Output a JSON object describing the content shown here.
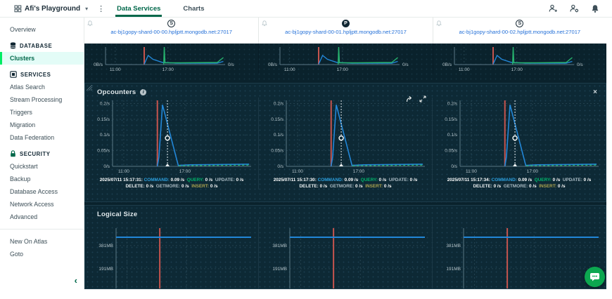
{
  "topbar": {
    "org_name": "Afi's Playground",
    "tabs": [
      {
        "label": "Data Services",
        "active": true
      },
      {
        "label": "Charts",
        "active": false
      }
    ]
  },
  "icons": {
    "caret_down": "▾",
    "kebab": "⋮",
    "close": "×",
    "collapse": "‹",
    "info": "i",
    "org": "org-grid",
    "invite_user": "person-plus",
    "user_settings": "person-gear",
    "notifications": "bell",
    "alerts": "bell",
    "share": "share-arrow",
    "expand": "expand-arrows",
    "drag": "drag-handle",
    "chat": "chat-bubble"
  },
  "sidebar": {
    "overview": "Overview",
    "database_header": "DATABASE",
    "clusters": "Clusters",
    "services_header": "SERVICES",
    "services_items": [
      "Atlas Search",
      "Stream Processing",
      "Triggers",
      "Migration",
      "Data Federation"
    ],
    "security_header": "SECURITY",
    "security_items": [
      "Quickstart",
      "Backup",
      "Database Access",
      "Network Access",
      "Advanced"
    ],
    "footer_items": [
      "New On Atlas",
      "Goto"
    ]
  },
  "shards": [
    {
      "badge": "S",
      "host": "ac-bj1gopy-shard-00-00.hpljptt.mongodb.net:27017"
    },
    {
      "badge": "P",
      "host": "ac-bj1gopy-shard-00-01.hpljptt.mongodb.net:27017"
    },
    {
      "badge": "S",
      "host": "ac-bj1gopy-shard-00-02.hpljptt.mongodb.net:27017"
    }
  ],
  "opcounters": {
    "title": "Opcounters",
    "charts": [
      {
        "timestamp": "2025/07/11 15:17:31:",
        "metrics": [
          {
            "label": "COMMAND:",
            "value": "0.09 /s",
            "color": "#2b9edd"
          },
          {
            "label": "QUERY:",
            "value": "0 /s",
            "color": "#00b36a"
          },
          {
            "label": "UPDATE:",
            "value": "0 /s",
            "color": "#a9bac3"
          },
          {
            "label": "DELETE:",
            "value": "0 /s",
            "color": "#e9eef0"
          },
          {
            "label": "GETMORE:",
            "value": "0 /s",
            "color": "#a9bac3"
          },
          {
            "label": "INSERT:",
            "value": "0 /s",
            "color": "#aaa24e"
          }
        ]
      },
      {
        "timestamp": "2025/07/11 15:17:30:",
        "metrics": [
          {
            "label": "COMMAND:",
            "value": "0.09 /s",
            "color": "#2b9edd"
          },
          {
            "label": "QUERY:",
            "value": "0 /s",
            "color": "#00b36a"
          },
          {
            "label": "UPDATE:",
            "value": "0 /s",
            "color": "#a9bac3"
          },
          {
            "label": "DELETE:",
            "value": "0 /s",
            "color": "#e9eef0"
          },
          {
            "label": "GETMORE:",
            "value": "0 /s",
            "color": "#a9bac3"
          },
          {
            "label": "INSERT:",
            "value": "0 /s",
            "color": "#aaa24e"
          }
        ]
      },
      {
        "timestamp": "2025/07/11 15:17:34:",
        "metrics": [
          {
            "label": "COMMAND:",
            "value": "0.09 /s",
            "color": "#2b9edd"
          },
          {
            "label": "QUERY:",
            "value": "0 /s",
            "color": "#00b36a"
          },
          {
            "label": "UPDATE:",
            "value": "0 /s",
            "color": "#a9bac3"
          },
          {
            "label": "DELETE:",
            "value": "0 /s",
            "color": "#e9eef0"
          },
          {
            "label": "GETMORE:",
            "value": "0 /s",
            "color": "#a9bac3"
          },
          {
            "label": "INSERT:",
            "value": "0 /s",
            "color": "#aaa24e"
          }
        ]
      }
    ]
  },
  "logical_size": {
    "title": "Logical Size"
  },
  "colors": {
    "accent_green": "#00684a",
    "active_indicator": "#00ed64",
    "link_blue": "#2470d8",
    "event_line": "#c5544e",
    "series_blue": "#2287d8",
    "series_green": "#27b56f",
    "panel_bg": "#0d2935",
    "fab_green": "#0ca750"
  },
  "chart_data": {
    "shard_mini": {
      "type": "line",
      "note": "mini throughput chart rendered once per shard column",
      "xlim": [
        9.9,
        23.5
      ],
      "ylim": [
        0,
        1
      ],
      "xticks": [
        {
          "t": 11,
          "label": "11:00"
        },
        {
          "t": 17,
          "label": "17:00"
        }
      ],
      "side_labels": [
        {
          "side": "left",
          "label": "0B/s"
        },
        {
          "side": "right",
          "label": "0/s"
        }
      ],
      "red_line": 14.3,
      "axes": true,
      "series": [
        {
          "name": "shard-traffic-blue",
          "color": "#2287d8",
          "width": 1.4,
          "points": [
            [
              14.3,
              0.02
            ],
            [
              14.75,
              0.52
            ],
            [
              15.3,
              0.3
            ],
            [
              16.4,
              0.12
            ],
            [
              18,
              0.08
            ],
            [
              22.6,
              0.08
            ],
            [
              23.3,
              0.18
            ]
          ]
        },
        {
          "name": "shard-traffic-green",
          "color": "#27b56f",
          "width": 1.4,
          "points": [
            [
              16.52,
              0
            ],
            [
              16.58,
              1.6
            ],
            [
              16.66,
              0.1
            ],
            [
              18.5,
              0.1
            ],
            [
              22.6,
              0.12
            ],
            [
              23.3,
              0.4
            ]
          ]
        }
      ]
    },
    "opcounters": {
      "type": "line",
      "note": "opcounters chart rendered once per shard; command spikes to ~0.2/s",
      "xlim": [
        9.9,
        23.5
      ],
      "ylim": [
        0,
        0.21
      ],
      "yticks": [
        {
          "v": 0.2,
          "label": "0.2/s"
        },
        {
          "v": 0.15,
          "label": "0.15/s"
        },
        {
          "v": 0.1,
          "label": "0.1/s"
        },
        {
          "v": 0.05,
          "label": "0.05/s"
        },
        {
          "v": 0,
          "label": "0/s"
        }
      ],
      "xticks": [
        {
          "t": 11,
          "label": "11:00"
        },
        {
          "t": 17,
          "label": "17:00"
        }
      ],
      "red_line": 14.3,
      "hover": {
        "t": 15.29,
        "marker_v": 0.09
      },
      "axes": true,
      "series": [
        {
          "name": "command",
          "color": "#2287d8",
          "width": 1.6,
          "points": [
            [
              14.3,
              0
            ],
            [
              14.45,
              0.03
            ],
            [
              14.8,
              0.196
            ],
            [
              16.35,
              0.003
            ],
            [
              17.5,
              0.005
            ],
            [
              23.3,
              0.007
            ]
          ]
        },
        {
          "name": "query",
          "color": "#27b56f",
          "width": 1.3,
          "dash": "3,3",
          "points": [
            [
              16.4,
              0.002
            ],
            [
              23.3,
              0.004
            ]
          ]
        }
      ]
    },
    "logical_size": {
      "type": "line",
      "note": "flat logical size ~449MB per shard; chart clipped by viewport bottom",
      "xlim": [
        9.9,
        23.5
      ],
      "ylim": [
        0,
        524
      ],
      "yticks": [
        {
          "v": 381,
          "label": "381MB"
        },
        {
          "v": 191,
          "label": "191MB"
        }
      ],
      "xticks": [
        {
          "t": 11,
          "label": ""
        },
        {
          "t": 17,
          "label": ""
        }
      ],
      "red_line": 14.3,
      "red_full": true,
      "hline": 449,
      "hline_color": "#2287d8",
      "axes": "left",
      "series": []
    }
  }
}
